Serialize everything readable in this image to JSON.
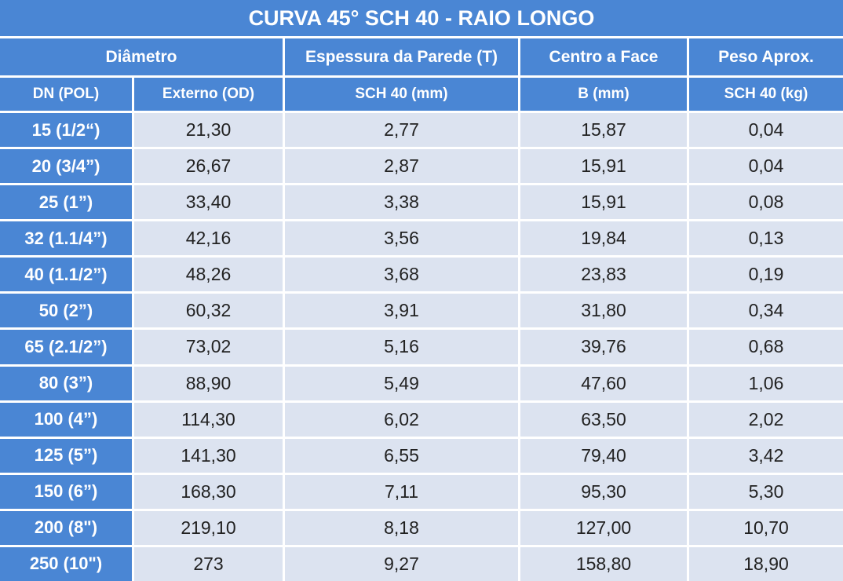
{
  "title": "CURVA 45° SCH 40 - RAIO LONGO",
  "header": {
    "row1": [
      "Diâmetro",
      "Espessura da Parede (T)",
      "Centro a Face",
      "Peso Aprox."
    ],
    "row2": [
      "DN (POL)",
      "Externo (OD)",
      "SCH 40 (mm)",
      "B (mm)",
      "SCH 40 (kg)"
    ]
  },
  "table": {
    "rows": [
      [
        "15 (1/2“)",
        "21,30",
        "2,77",
        "15,87",
        "0,04"
      ],
      [
        "20 (3/4”)",
        "26,67",
        "2,87",
        "15,91",
        "0,04"
      ],
      [
        "25 (1”)",
        "33,40",
        "3,38",
        "15,91",
        "0,08"
      ],
      [
        "32 (1.1/4”)",
        "42,16",
        "3,56",
        "19,84",
        "0,13"
      ],
      [
        "40 (1.1/2”)",
        "48,26",
        "3,68",
        "23,83",
        "0,19"
      ],
      [
        "50 (2”)",
        "60,32",
        "3,91",
        "31,80",
        "0,34"
      ],
      [
        "65 (2.1/2”)",
        "73,02",
        "5,16",
        "39,76",
        "0,68"
      ],
      [
        "80 (3”)",
        "88,90",
        "5,49",
        "47,60",
        "1,06"
      ],
      [
        "100 (4”)",
        "114,30",
        "6,02",
        "63,50",
        "2,02"
      ],
      [
        "125 (5”)",
        "141,30",
        "6,55",
        "79,40",
        "3,42"
      ],
      [
        "150 (6”)",
        "168,30",
        "7,11",
        "95,30",
        "5,30"
      ],
      [
        "200 (8\")",
        "219,10",
        "8,18",
        "127,00",
        "10,70"
      ],
      [
        "250 (10\")",
        "273",
        "9,27",
        "158,80",
        "18,90"
      ]
    ]
  }
}
